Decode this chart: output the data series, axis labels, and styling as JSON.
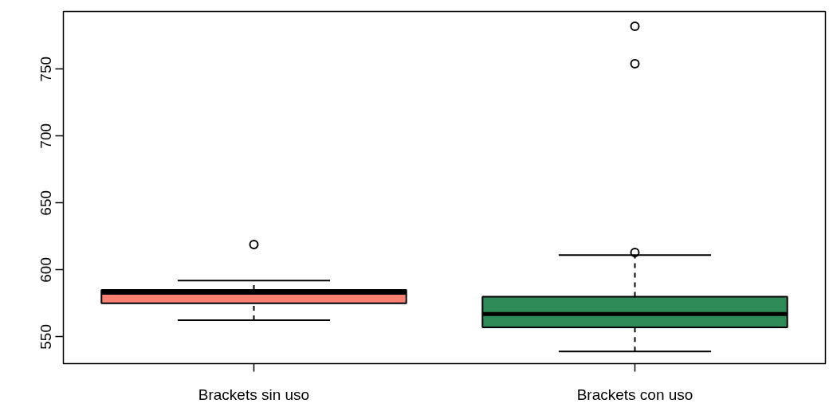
{
  "chart_data": {
    "type": "box",
    "categories": [
      "Brackets sin uso",
      "Brackets con uso"
    ],
    "colors": [
      "#fa8072",
      "#2e8b57"
    ],
    "boxes": [
      {
        "low": 562.5,
        "q1": 575,
        "median": 583,
        "q3": 585,
        "high": 592,
        "outliers": [
          619
        ]
      },
      {
        "low": 539,
        "q1": 557,
        "median": 567,
        "q3": 580,
        "high": 611,
        "outliers": [
          613,
          754,
          782
        ]
      }
    ],
    "ylim": [
      530,
      793
    ],
    "yticks": [
      550,
      600,
      650,
      700,
      750
    ],
    "grid": false
  }
}
